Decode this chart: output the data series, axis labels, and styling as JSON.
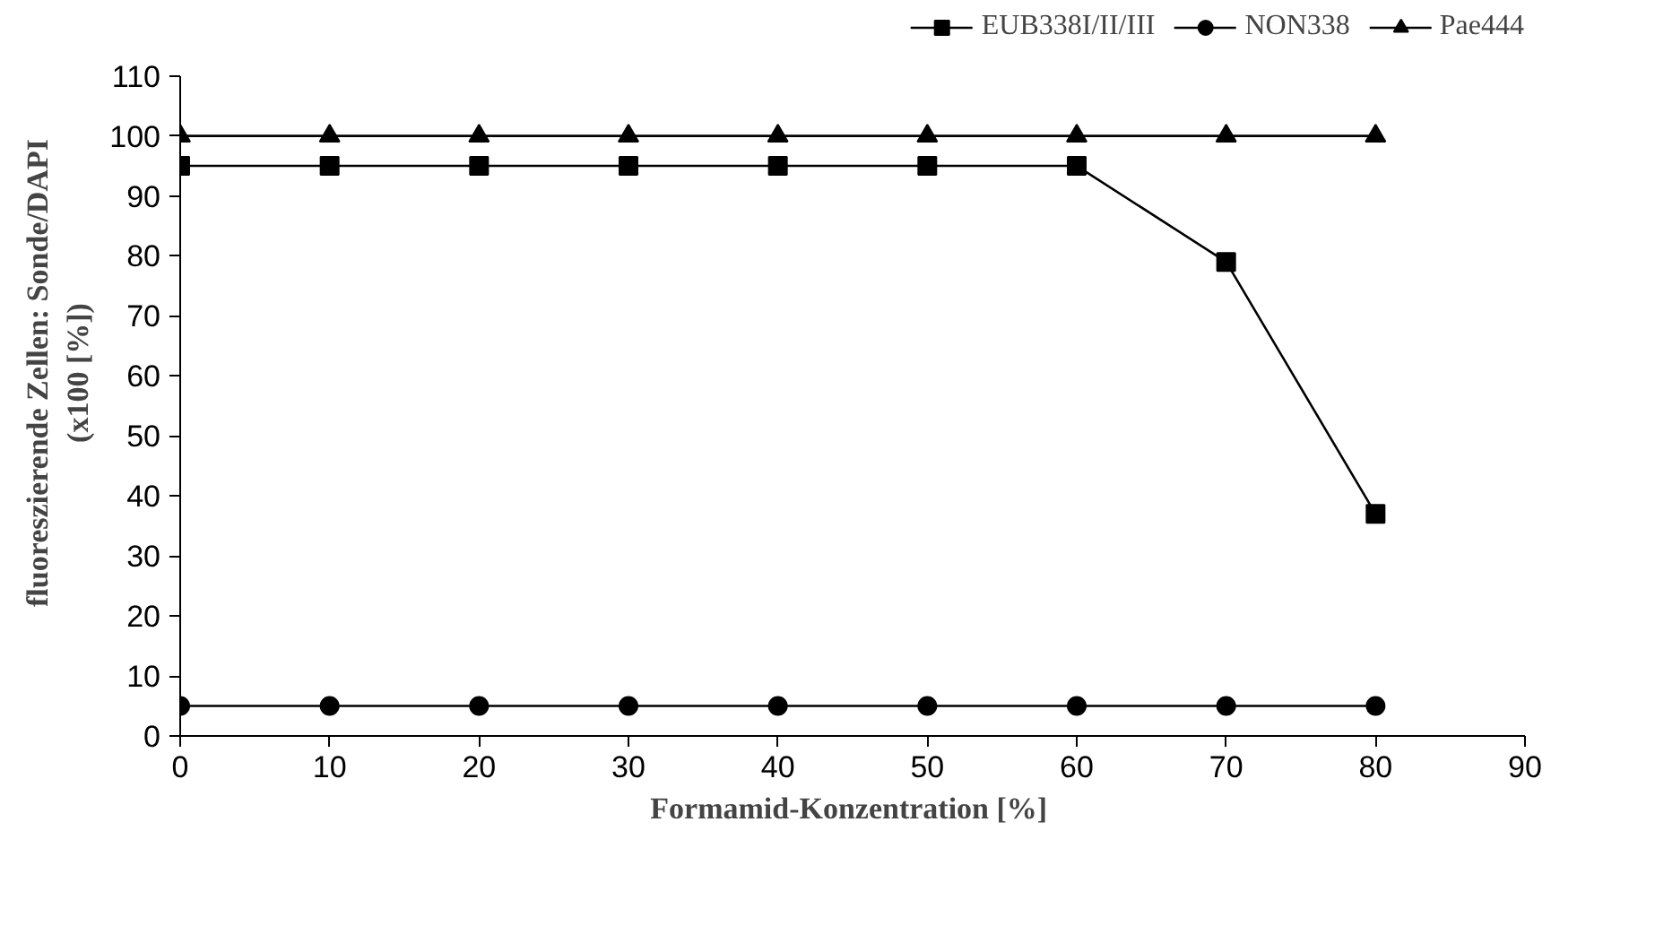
{
  "chart_data": {
    "type": "line",
    "xlabel": "Formamid-Konzentration  [%]",
    "ylabel": "fluoreszierende Zellen: Sonde/DAPI\n(x100 [%])",
    "x": [
      0,
      10,
      20,
      30,
      40,
      50,
      60,
      70,
      80
    ],
    "series": [
      {
        "name": "EUB338I/II/III",
        "color": "#000000",
        "marker": "square",
        "values": [
          95,
          95,
          95,
          95,
          95,
          95,
          95,
          79,
          37
        ]
      },
      {
        "name": "NON338",
        "color": "#000000",
        "marker": "circle",
        "values": [
          5,
          5,
          5,
          5,
          5,
          5,
          5,
          5,
          5
        ]
      },
      {
        "name": "Pae444",
        "color": "#000000",
        "marker": "triangle",
        "values": [
          100,
          100,
          100,
          100,
          100,
          100,
          100,
          100,
          100
        ]
      }
    ],
    "xlim": [
      0,
      90
    ],
    "xticks": [
      0,
      10,
      20,
      30,
      40,
      50,
      60,
      70,
      80,
      90
    ],
    "ylim": [
      0,
      110
    ],
    "yticks": [
      0,
      10,
      20,
      30,
      40,
      50,
      60,
      70,
      80,
      90,
      100,
      110
    ],
    "grid": false,
    "legend": "top right",
    "line_style": "solid"
  }
}
